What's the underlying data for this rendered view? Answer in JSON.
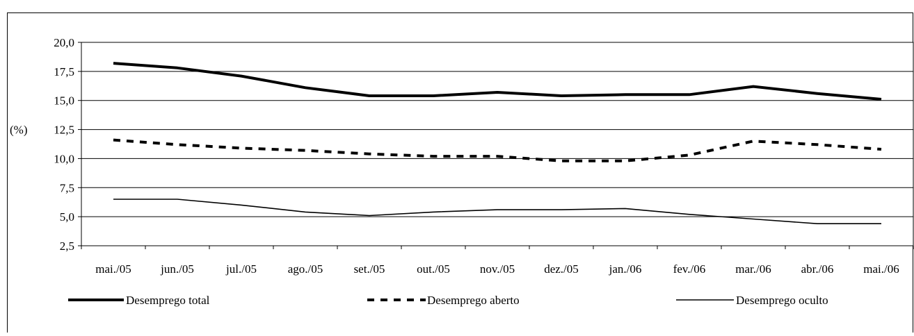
{
  "chart_data": {
    "type": "line",
    "ylabel": "(%)",
    "ylim": [
      2.5,
      20.0
    ],
    "yticks": [
      "2,5",
      "5,0",
      "7,5",
      "10,0",
      "12,5",
      "15,0",
      "17,5",
      "20,0"
    ],
    "grid": true,
    "legend_position": "bottom",
    "categories": [
      "mai./05",
      "jun./05",
      "jul./05",
      "ago./05",
      "set./05",
      "out./05",
      "nov./05",
      "dez./05",
      "jan./06",
      "fev./06",
      "mar./06",
      "abr./06",
      "mai./06"
    ],
    "series": [
      {
        "name": "Desemprego total",
        "style": "thick-solid",
        "color": "#000000",
        "values": [
          18.2,
          17.8,
          17.1,
          16.1,
          15.4,
          15.4,
          15.7,
          15.4,
          15.5,
          15.5,
          16.2,
          15.6,
          15.1
        ]
      },
      {
        "name": "Desemprego aberto",
        "style": "dashed",
        "color": "#000000",
        "values": [
          11.6,
          11.2,
          10.9,
          10.7,
          10.4,
          10.2,
          10.2,
          9.8,
          9.8,
          10.3,
          11.5,
          11.2,
          10.8
        ]
      },
      {
        "name": "Desemprego oculto",
        "style": "thin-solid",
        "color": "#000000",
        "values": [
          6.5,
          6.5,
          6.0,
          5.4,
          5.1,
          5.4,
          5.6,
          5.6,
          5.7,
          5.2,
          4.8,
          4.4,
          4.4
        ]
      }
    ]
  }
}
